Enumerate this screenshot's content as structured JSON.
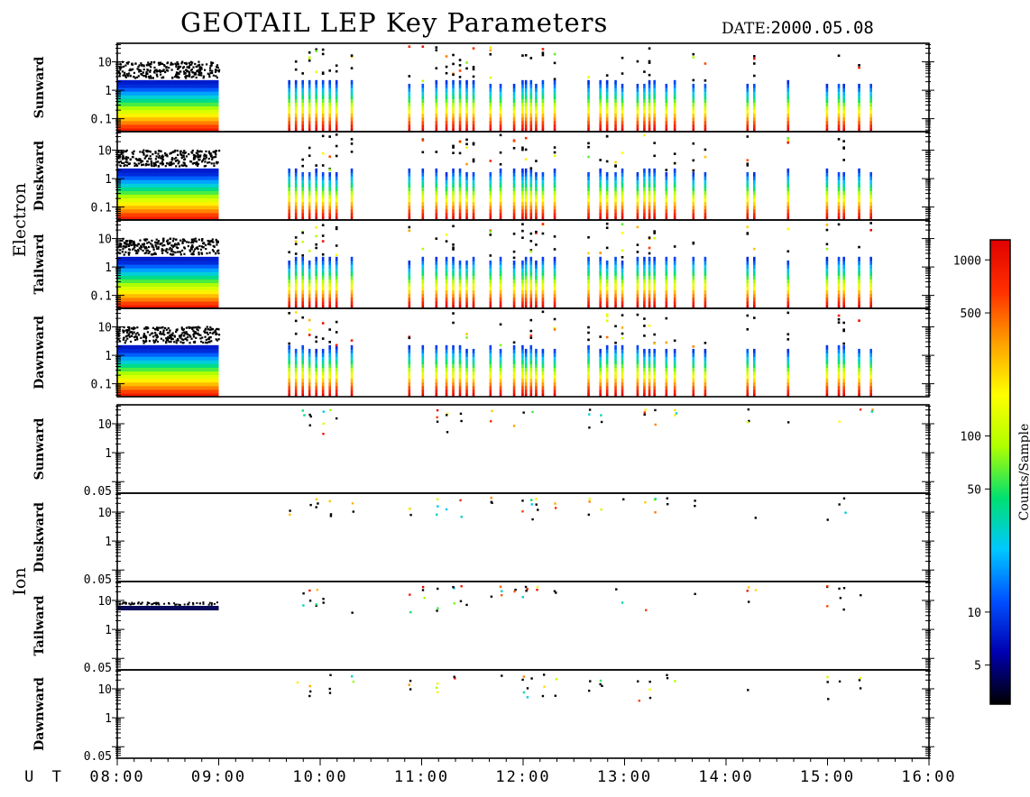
{
  "title": "GEOTAIL LEP Key Parameters",
  "date_label": "DATE:",
  "date_value": "2000.05.08",
  "colorbar": {
    "label": "Counts/Sample",
    "ticks": [
      "1000",
      "500",
      "100",
      "50",
      "10",
      "5"
    ],
    "tick_values": [
      1000,
      500,
      100,
      50,
      10,
      5
    ],
    "range": [
      3,
      1300
    ],
    "scale": "log",
    "colors": [
      "#000000",
      "#0000b0",
      "#0050ff",
      "#00c8ff",
      "#00e070",
      "#b0ff00",
      "#ffff00",
      "#ffa000",
      "#ff3000",
      "#e00000"
    ]
  },
  "chart_data": {
    "type": "heatmap",
    "title": "GEOTAIL LEP Key Parameters",
    "x_axis": {
      "label": "U T",
      "ticks": [
        "08:00",
        "09:00",
        "10:00",
        "11:00",
        "12:00",
        "13:00",
        "14:00",
        "15:00",
        "16:00"
      ],
      "range": [
        "08:00",
        "16:00"
      ]
    },
    "groups": [
      {
        "name": "Electron",
        "panels": [
          {
            "label": "Sunward",
            "y_ticks": [
              "10",
              "1",
              "0.1"
            ],
            "ylim": [
              0.035,
              45
            ],
            "scale": "log"
          },
          {
            "label": "Duskward",
            "y_ticks": [
              "10",
              "1",
              "0.1"
            ],
            "ylim": [
              0.035,
              45
            ],
            "scale": "log"
          },
          {
            "label": "Tailward",
            "y_ticks": [
              "10",
              "1",
              "0.1"
            ],
            "ylim": [
              0.035,
              45
            ],
            "scale": "log"
          },
          {
            "label": "Dawnward",
            "y_ticks": [
              "10",
              "1",
              "0.1"
            ],
            "ylim": [
              0.035,
              45
            ],
            "scale": "log"
          }
        ]
      },
      {
        "name": "Ion",
        "panels": [
          {
            "label": "Sunward",
            "y_ticks": [
              "10",
              "1",
              "0.05"
            ],
            "ylim": [
              0.04,
              45
            ],
            "scale": "log"
          },
          {
            "label": "Duskward",
            "y_ticks": [
              "10",
              "1",
              "0.05"
            ],
            "ylim": [
              0.04,
              45
            ],
            "scale": "log"
          },
          {
            "label": "Tailward",
            "y_ticks": [
              "10",
              "1",
              "0.05"
            ],
            "ylim": [
              0.04,
              45
            ],
            "scale": "log"
          },
          {
            "label": "Dawnward",
            "y_ticks": [
              "10",
              "1",
              "0.05"
            ],
            "ylim": [
              0.04,
              45
            ],
            "scale": "log"
          }
        ]
      }
    ],
    "continuous_coverage": [
      "08:00",
      "09:00"
    ],
    "burst_times": [
      "09:41",
      "09:45",
      "09:49",
      "09:53",
      "09:57",
      "10:01",
      "10:05",
      "10:09",
      "10:18",
      "10:52",
      "11:00",
      "11:08",
      "11:14",
      "11:18",
      "11:22",
      "11:26",
      "11:30",
      "11:40",
      "11:46",
      "11:54",
      "11:59",
      "12:01",
      "12:04",
      "12:07",
      "12:11",
      "12:18",
      "12:38",
      "12:45",
      "12:49",
      "12:54",
      "12:58",
      "13:07",
      "13:11",
      "13:14",
      "13:17",
      "13:24",
      "13:29",
      "13:40",
      "13:47",
      "14:12",
      "14:16",
      "14:36",
      "14:59",
      "15:06",
      "15:09",
      "15:18",
      "15:25"
    ]
  }
}
